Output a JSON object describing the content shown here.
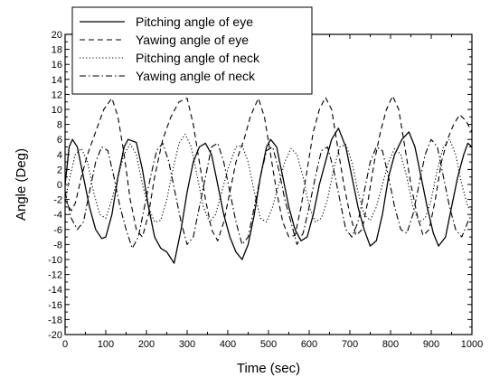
{
  "chart_data": {
    "type": "line",
    "title": "",
    "xlabel": "Time (sec)",
    "ylabel": "Angle (Deg)",
    "xlim": [
      0,
      1000
    ],
    "ylim": [
      -20,
      20
    ],
    "xticks": [
      0,
      100,
      200,
      300,
      400,
      500,
      600,
      700,
      800,
      900,
      1000
    ],
    "yticks": [
      -20,
      -18,
      -16,
      -14,
      -12,
      -10,
      -8,
      -6,
      -4,
      -2,
      0,
      2,
      4,
      6,
      8,
      10,
      12,
      14,
      16,
      18,
      20
    ],
    "grid": false,
    "legend_position": "top-left",
    "series": [
      {
        "name": "Pitching angle of eye",
        "style": "solid",
        "color": "#000000",
        "points": [
          [
            0,
            0
          ],
          [
            10,
            5
          ],
          [
            18,
            6
          ],
          [
            30,
            5
          ],
          [
            45,
            1
          ],
          [
            60,
            -3
          ],
          [
            75,
            -6
          ],
          [
            90,
            -7.2
          ],
          [
            100,
            -7
          ],
          [
            115,
            -4
          ],
          [
            130,
            1
          ],
          [
            145,
            5
          ],
          [
            155,
            6
          ],
          [
            175,
            5.6
          ],
          [
            190,
            2
          ],
          [
            205,
            -3
          ],
          [
            220,
            -7
          ],
          [
            235,
            -8.5
          ],
          [
            250,
            -9
          ],
          [
            268,
            -10.5
          ],
          [
            285,
            -6
          ],
          [
            300,
            -1
          ],
          [
            315,
            3
          ],
          [
            330,
            5
          ],
          [
            345,
            5.5
          ],
          [
            360,
            4
          ],
          [
            375,
            0
          ],
          [
            390,
            -4
          ],
          [
            405,
            -7
          ],
          [
            420,
            -9
          ],
          [
            435,
            -10
          ],
          [
            450,
            -8
          ],
          [
            465,
            -4
          ],
          [
            480,
            1
          ],
          [
            495,
            5
          ],
          [
            505,
            6
          ],
          [
            520,
            5
          ],
          [
            535,
            1
          ],
          [
            550,
            -3
          ],
          [
            565,
            -6
          ],
          [
            580,
            -7.5
          ],
          [
            595,
            -7
          ],
          [
            610,
            -4
          ],
          [
            625,
            0
          ],
          [
            640,
            3
          ],
          [
            655,
            6
          ],
          [
            672,
            7.5
          ],
          [
            690,
            5
          ],
          [
            705,
            1
          ],
          [
            720,
            -3
          ],
          [
            735,
            -6
          ],
          [
            750,
            -8.2
          ],
          [
            765,
            -7.5
          ],
          [
            780,
            -4
          ],
          [
            795,
            1
          ],
          [
            810,
            4
          ],
          [
            828,
            6
          ],
          [
            845,
            7
          ],
          [
            860,
            5
          ],
          [
            875,
            1
          ],
          [
            890,
            -3
          ],
          [
            905,
            -6.5
          ],
          [
            918,
            -8.2
          ],
          [
            935,
            -7
          ],
          [
            950,
            -3
          ],
          [
            965,
            1
          ],
          [
            980,
            4
          ],
          [
            990,
            5.5
          ],
          [
            1000,
            5
          ]
        ]
      },
      {
        "name": "Yawing angle of eye",
        "style": "dashed",
        "color": "#000000",
        "points": [
          [
            0,
            -2
          ],
          [
            15,
            -3.5
          ],
          [
            25,
            -2.5
          ],
          [
            40,
            1
          ],
          [
            55,
            4
          ],
          [
            75,
            7
          ],
          [
            95,
            10
          ],
          [
            115,
            11.5
          ],
          [
            130,
            9
          ],
          [
            145,
            4
          ],
          [
            160,
            -2
          ],
          [
            175,
            -6
          ],
          [
            190,
            -7
          ],
          [
            205,
            -4
          ],
          [
            220,
            1
          ],
          [
            240,
            6
          ],
          [
            260,
            9
          ],
          [
            280,
            11
          ],
          [
            300,
            11.5
          ],
          [
            315,
            8
          ],
          [
            330,
            3
          ],
          [
            345,
            -2
          ],
          [
            360,
            -6
          ],
          [
            375,
            -7.5
          ],
          [
            390,
            -5
          ],
          [
            405,
            -1
          ],
          [
            420,
            3
          ],
          [
            440,
            6
          ],
          [
            455,
            9
          ],
          [
            475,
            11.5
          ],
          [
            490,
            9
          ],
          [
            505,
            4
          ],
          [
            520,
            -1
          ],
          [
            535,
            -5
          ],
          [
            550,
            -7
          ],
          [
            565,
            -6.8
          ],
          [
            580,
            -3
          ],
          [
            595,
            2
          ],
          [
            610,
            7
          ],
          [
            625,
            10
          ],
          [
            640,
            11.6
          ],
          [
            655,
            10
          ],
          [
            670,
            5
          ],
          [
            685,
            0
          ],
          [
            700,
            -4
          ],
          [
            715,
            -6.8
          ],
          [
            730,
            -6
          ],
          [
            745,
            -2
          ],
          [
            760,
            3
          ],
          [
            775,
            7
          ],
          [
            790,
            10
          ],
          [
            805,
            11.8
          ],
          [
            820,
            10
          ],
          [
            835,
            5
          ],
          [
            850,
            0
          ],
          [
            865,
            -4
          ],
          [
            880,
            -6.8
          ],
          [
            895,
            -6
          ],
          [
            910,
            -2
          ],
          [
            925,
            3
          ],
          [
            940,
            6
          ],
          [
            955,
            8
          ],
          [
            970,
            9.3
          ],
          [
            985,
            8.5
          ],
          [
            1000,
            7
          ]
        ]
      },
      {
        "name": "Pitching angle of neck",
        "style": "dotted",
        "color": "#000000",
        "points": [
          [
            0,
            -2
          ],
          [
            12,
            1
          ],
          [
            25,
            4
          ],
          [
            40,
            4.8
          ],
          [
            55,
            3
          ],
          [
            70,
            -1
          ],
          [
            85,
            -4
          ],
          [
            100,
            -4.5
          ],
          [
            115,
            -2
          ],
          [
            130,
            1
          ],
          [
            145,
            4
          ],
          [
            160,
            5.4
          ],
          [
            175,
            4
          ],
          [
            190,
            0
          ],
          [
            205,
            -3
          ],
          [
            220,
            -5
          ],
          [
            235,
            -4.8
          ],
          [
            250,
            -2
          ],
          [
            265,
            2
          ],
          [
            280,
            5.5
          ],
          [
            295,
            6.7
          ],
          [
            310,
            5
          ],
          [
            325,
            1
          ],
          [
            340,
            -3
          ],
          [
            355,
            -5
          ],
          [
            370,
            -4
          ],
          [
            385,
            -1
          ],
          [
            400,
            2
          ],
          [
            420,
            5
          ],
          [
            435,
            5.2
          ],
          [
            450,
            3
          ],
          [
            465,
            -1
          ],
          [
            480,
            -4.5
          ],
          [
            495,
            -5
          ],
          [
            510,
            -3
          ],
          [
            525,
            0
          ],
          [
            540,
            3
          ],
          [
            555,
            4.8
          ],
          [
            570,
            4
          ],
          [
            585,
            1
          ],
          [
            600,
            -3
          ],
          [
            615,
            -5
          ],
          [
            630,
            -4.5
          ],
          [
            645,
            -2
          ],
          [
            660,
            2
          ],
          [
            675,
            5
          ],
          [
            690,
            5.3
          ],
          [
            705,
            3
          ],
          [
            720,
            -1
          ],
          [
            735,
            -4
          ],
          [
            750,
            -4.8
          ],
          [
            765,
            -3
          ],
          [
            780,
            0
          ],
          [
            795,
            3
          ],
          [
            810,
            4.8
          ],
          [
            825,
            4
          ],
          [
            840,
            1
          ],
          [
            855,
            -3
          ],
          [
            870,
            -5
          ],
          [
            885,
            -4.5
          ],
          [
            900,
            -2
          ],
          [
            915,
            2
          ],
          [
            930,
            5
          ],
          [
            945,
            6
          ],
          [
            960,
            4
          ],
          [
            975,
            0
          ],
          [
            990,
            -3
          ],
          [
            1000,
            -3.5
          ]
        ]
      },
      {
        "name": "Yawing angle of neck",
        "style": "dash-dot",
        "color": "#000000",
        "points": [
          [
            0,
            -1
          ],
          [
            15,
            -4.5
          ],
          [
            30,
            -6
          ],
          [
            45,
            -5
          ],
          [
            60,
            -1
          ],
          [
            75,
            3
          ],
          [
            90,
            5
          ],
          [
            105,
            4.5
          ],
          [
            120,
            1
          ],
          [
            135,
            -3
          ],
          [
            150,
            -6
          ],
          [
            165,
            -8.5
          ],
          [
            180,
            -7
          ],
          [
            195,
            -3
          ],
          [
            210,
            1
          ],
          [
            225,
            4.5
          ],
          [
            240,
            5.5
          ],
          [
            255,
            3
          ],
          [
            270,
            -1
          ],
          [
            285,
            -5
          ],
          [
            300,
            -8
          ],
          [
            315,
            -7
          ],
          [
            330,
            -3
          ],
          [
            345,
            1
          ],
          [
            360,
            5
          ],
          [
            375,
            5.5
          ],
          [
            390,
            3
          ],
          [
            405,
            -1
          ],
          [
            420,
            -5
          ],
          [
            435,
            -8
          ],
          [
            450,
            -7
          ],
          [
            465,
            -3
          ],
          [
            480,
            1
          ],
          [
            495,
            4.5
          ],
          [
            510,
            5
          ],
          [
            525,
            2
          ],
          [
            540,
            -2
          ],
          [
            555,
            -5
          ],
          [
            570,
            -8
          ],
          [
            585,
            -6.5
          ],
          [
            600,
            -3
          ],
          [
            615,
            1
          ],
          [
            630,
            4.5
          ],
          [
            645,
            5
          ],
          [
            660,
            2
          ],
          [
            675,
            -2
          ],
          [
            690,
            -6
          ],
          [
            705,
            -7
          ],
          [
            720,
            -5
          ],
          [
            735,
            -1
          ],
          [
            750,
            3
          ],
          [
            765,
            5
          ],
          [
            780,
            4.5
          ],
          [
            795,
            1
          ],
          [
            810,
            -3
          ],
          [
            825,
            -6
          ],
          [
            840,
            -6.5
          ],
          [
            855,
            -4
          ],
          [
            870,
            0
          ],
          [
            885,
            4
          ],
          [
            900,
            6
          ],
          [
            915,
            5
          ],
          [
            930,
            1
          ],
          [
            945,
            -3
          ],
          [
            960,
            -6
          ],
          [
            975,
            -7
          ],
          [
            990,
            -5
          ],
          [
            1000,
            -4
          ]
        ]
      }
    ]
  }
}
